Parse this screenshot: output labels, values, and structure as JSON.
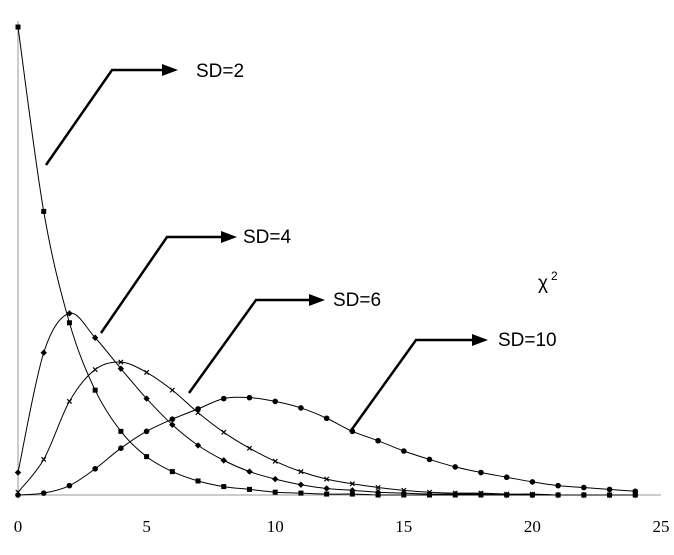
{
  "chart_data": {
    "type": "line",
    "title": "",
    "xlabel": "",
    "ylabel": "",
    "xlim": [
      0,
      25
    ],
    "ylim": [
      0,
      0.5
    ],
    "x_ticks": [
      0,
      5,
      10,
      15,
      20,
      25
    ],
    "grid": false,
    "legend": "none",
    "x": [
      0,
      1,
      2,
      3,
      4,
      5,
      6,
      7,
      8,
      9,
      10,
      11,
      12,
      13,
      14,
      15,
      16,
      17,
      18,
      19,
      20,
      21,
      22,
      23,
      24
    ],
    "series": [
      {
        "name": "SD=2",
        "marker": "square",
        "values": [
          0.5,
          0.303,
          0.184,
          0.112,
          0.068,
          0.041,
          0.025,
          0.015,
          0.009,
          0.006,
          0.003,
          0.002,
          0.001,
          0.001,
          0.0,
          0.0,
          0.0,
          0.0,
          0.0,
          0.0,
          0.0,
          0.0,
          0.0,
          0.0,
          0.0
        ]
      },
      {
        "name": "SD=4",
        "marker": "diamond",
        "values": [
          0.024,
          0.152,
          0.194,
          0.168,
          0.135,
          0.103,
          0.075,
          0.053,
          0.037,
          0.025,
          0.017,
          0.011,
          0.007,
          0.005,
          0.003,
          0.002,
          0.001,
          0.001,
          0.001,
          0.0,
          0.0,
          0.0,
          0.0,
          0.0,
          0.0
        ]
      },
      {
        "name": "SD=6",
        "marker": "x",
        "values": [
          0.003,
          0.038,
          0.1,
          0.134,
          0.142,
          0.131,
          0.112,
          0.088,
          0.067,
          0.05,
          0.036,
          0.025,
          0.017,
          0.012,
          0.008,
          0.005,
          0.003,
          0.002,
          0.002,
          0.001,
          0.001,
          0.0,
          0.0,
          0.0,
          0.0
        ]
      },
      {
        "name": "SD=10",
        "marker": "circle",
        "values": [
          0.0,
          0.002,
          0.01,
          0.028,
          0.05,
          0.068,
          0.081,
          0.092,
          0.103,
          0.104,
          0.1,
          0.093,
          0.082,
          0.068,
          0.058,
          0.047,
          0.038,
          0.03,
          0.024,
          0.019,
          0.014,
          0.01,
          0.008,
          0.006,
          0.004
        ]
      }
    ],
    "annotations": [
      {
        "text": "SD=2",
        "series": "SD=2"
      },
      {
        "text": "SD=4",
        "series": "SD=4"
      },
      {
        "text": "SD=6",
        "series": "SD=6"
      },
      {
        "text": "SD=10",
        "series": "SD=10"
      },
      {
        "text": "χ",
        "superscript": "2"
      }
    ]
  }
}
